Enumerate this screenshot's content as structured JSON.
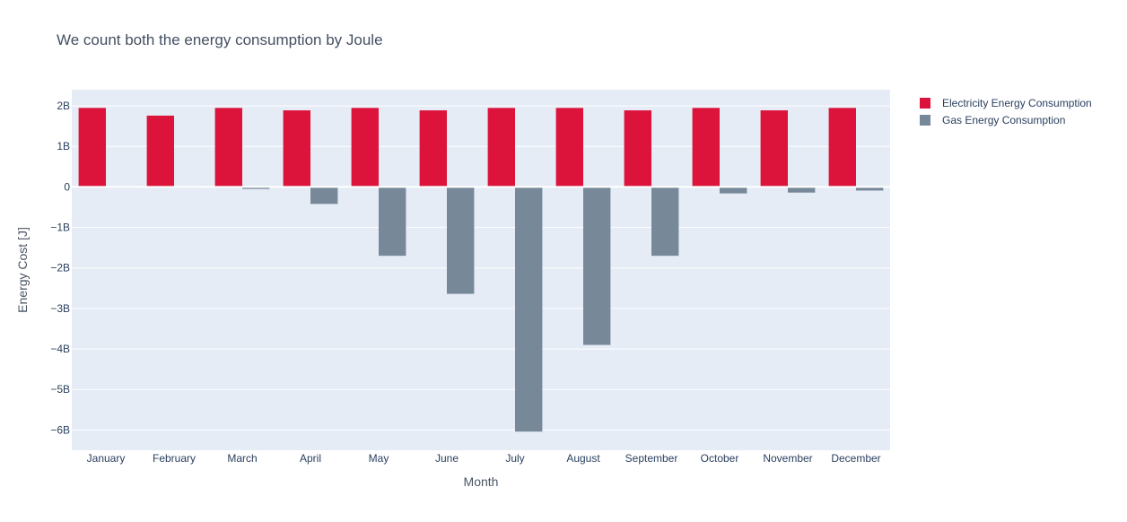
{
  "chart_data": {
    "type": "bar",
    "title": "We count both the energy consumption by Joule",
    "xlabel": "Month",
    "ylabel": "Energy Cost [J]",
    "categories": [
      "January",
      "February",
      "March",
      "April",
      "May",
      "June",
      "July",
      "August",
      "September",
      "October",
      "November",
      "December"
    ],
    "series": [
      {
        "name": "Electricity Energy Consumption",
        "color": "#dc143c",
        "values": [
          1950000000.0,
          1760000000.0,
          1950000000.0,
          1890000000.0,
          1950000000.0,
          1890000000.0,
          1950000000.0,
          1950000000.0,
          1890000000.0,
          1950000000.0,
          1890000000.0,
          1950000000.0
        ]
      },
      {
        "name": "Gas Energy Consumption",
        "color": "#778899",
        "values": [
          -10000000.0,
          -10000000.0,
          -50000000.0,
          -420000000.0,
          -1700000000.0,
          -2640000000.0,
          -6040000000.0,
          -3900000000.0,
          -1700000000.0,
          -160000000.0,
          -140000000.0,
          -90000000.0
        ]
      }
    ],
    "yticks": [
      2000000000.0,
      1000000000.0,
      0,
      -1000000000.0,
      -2000000000.0,
      -3000000000.0,
      -4000000000.0,
      -5000000000.0,
      -6000000000.0
    ],
    "ytick_labels": [
      "2B",
      "1B",
      "0",
      "−1B",
      "−2B",
      "−3B",
      "−4B",
      "−5B",
      "−6B"
    ],
    "ylim": [
      -6500000000.0,
      2400000000.0
    ],
    "grid": true,
    "legend_position": "top-right",
    "plot_background": "#e5ecf6",
    "grid_color": "#ffffff"
  }
}
